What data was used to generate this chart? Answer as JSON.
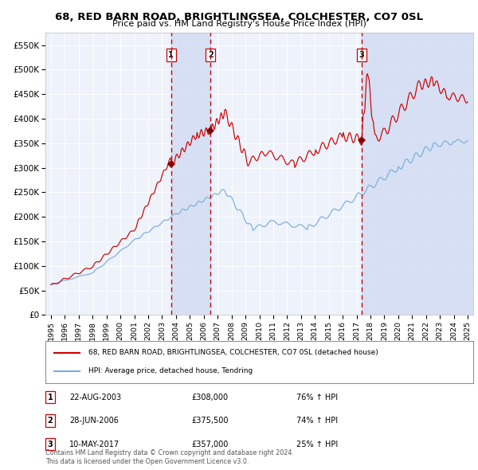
{
  "title": "68, RED BARN ROAD, BRIGHTLINGSEA, COLCHESTER, CO7 0SL",
  "subtitle": "Price paid vs. HM Land Registry's House Price Index (HPI)",
  "title_fontsize": 9.5,
  "subtitle_fontsize": 8.0,
  "background_color": "#ffffff",
  "plot_bg_color": "#eef2fb",
  "shade_color": "#ccd8f0",
  "grid_color": "#ffffff",
  "red_line_color": "#cc0000",
  "blue_line_color": "#7aaddc",
  "sale_marker_color": "#880000",
  "dashed_line_color": "#cc0000",
  "ylim": [
    0,
    575000
  ],
  "yticks": [
    0,
    50000,
    100000,
    150000,
    200000,
    250000,
    300000,
    350000,
    400000,
    450000,
    500000,
    550000
  ],
  "ytick_labels": [
    "£0",
    "£50K",
    "£100K",
    "£150K",
    "£200K",
    "£250K",
    "£300K",
    "£350K",
    "£400K",
    "£450K",
    "£500K",
    "£550K"
  ],
  "xmin": 1994.6,
  "xmax": 2025.4,
  "sale_events": [
    {
      "label": "1",
      "date_x": 2003.64,
      "price": 308000,
      "date_str": "22-AUG-2003",
      "price_str": "£308,000",
      "hpi_str": "76% ↑ HPI"
    },
    {
      "label": "2",
      "date_x": 2006.49,
      "price": 375500,
      "date_str": "28-JUN-2006",
      "price_str": "£375,500",
      "hpi_str": "74% ↑ HPI"
    },
    {
      "label": "3",
      "date_x": 2017.36,
      "price": 357000,
      "date_str": "10-MAY-2017",
      "price_str": "£357,000",
      "hpi_str": "25% ↑ HPI"
    }
  ],
  "legend_red_label": "68, RED BARN ROAD, BRIGHTLINGSEA, COLCHESTER, CO7 0SL (detached house)",
  "legend_blue_label": "HPI: Average price, detached house, Tendring",
  "footer1": "Contains HM Land Registry data © Crown copyright and database right 2024.",
  "footer2": "This data is licensed under the Open Government Licence v3.0."
}
